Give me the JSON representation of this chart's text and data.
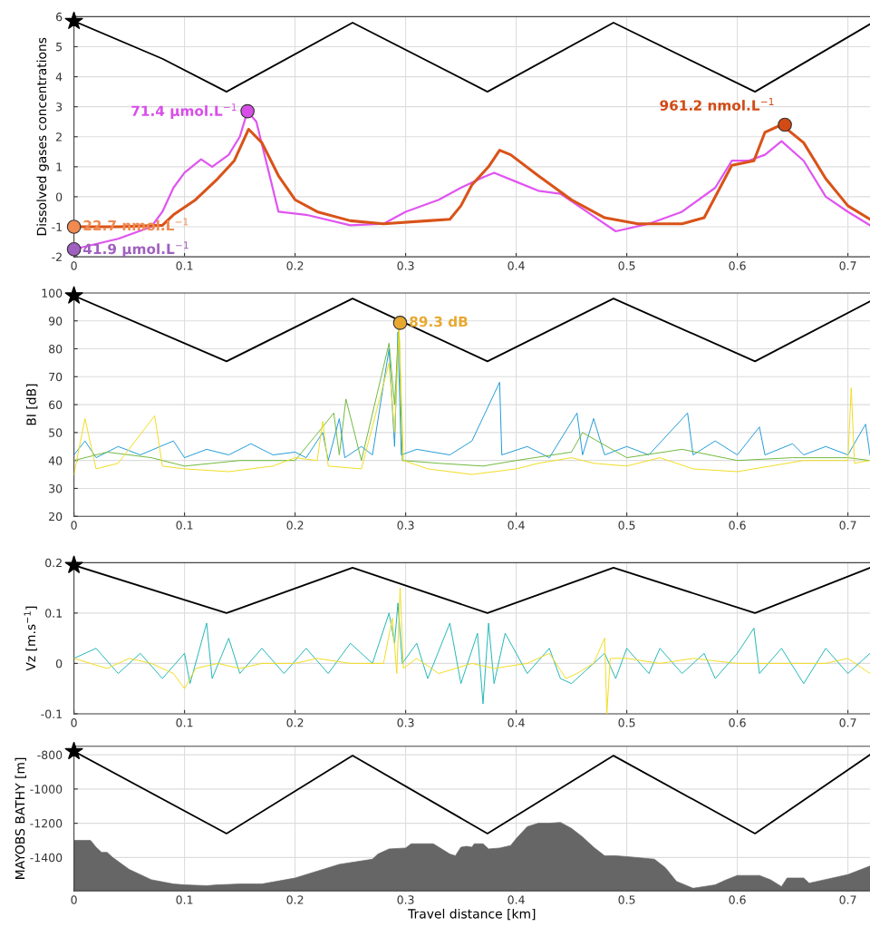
{
  "chart_data": [
    {
      "type": "line",
      "ylabel": "Dissolved gases concentrations",
      "xlim": [
        0,
        0.72
      ],
      "xticks": [
        0,
        0.1,
        0.2,
        0.3,
        0.4,
        0.5,
        0.6,
        0.7
      ],
      "ylim": [
        -2,
        6
      ],
      "yticks": [
        -2,
        -1,
        0,
        1,
        2,
        3,
        4,
        5,
        6
      ],
      "grid": true,
      "line_style": "solid",
      "marker": "none",
      "series": [
        {
          "color": "#000000",
          "x": [
            0,
            0.08,
            0.138,
            0.252,
            0.374,
            0.488,
            0.616,
            0.72
          ],
          "values": [
            5.85,
            4.6,
            3.5,
            5.8,
            3.5,
            5.8,
            3.5,
            5.75
          ]
        },
        {
          "type": "scatter",
          "marker": "star",
          "color": "#000000",
          "x": [
            0
          ],
          "values": [
            5.85
          ]
        },
        {
          "color": "#e055f0",
          "x": [
            0,
            0.04,
            0.07,
            0.08,
            0.09,
            0.1,
            0.115,
            0.125,
            0.14,
            0.15,
            0.157,
            0.165,
            0.175,
            0.185,
            0.21,
            0.25,
            0.28,
            0.3,
            0.33,
            0.35,
            0.37,
            0.38,
            0.4,
            0.42,
            0.44,
            0.46,
            0.49,
            0.52,
            0.55,
            0.58,
            0.595,
            0.61,
            0.625,
            0.64,
            0.66,
            0.68,
            0.7,
            0.72
          ],
          "values": [
            -1.75,
            -1.4,
            -1.0,
            -0.5,
            0.3,
            0.8,
            1.25,
            1.0,
            1.4,
            2.0,
            2.85,
            2.5,
            1.0,
            -0.5,
            -0.6,
            -0.95,
            -0.9,
            -0.5,
            -0.1,
            0.3,
            0.65,
            0.8,
            0.5,
            0.2,
            0.1,
            -0.4,
            -1.15,
            -0.9,
            -0.5,
            0.3,
            1.2,
            1.2,
            1.4,
            1.85,
            1.2,
            0.0,
            -0.5,
            -0.95
          ]
        },
        {
          "color": "#d95319",
          "x": [
            0,
            0.04,
            0.08,
            0.09,
            0.11,
            0.13,
            0.145,
            0.158,
            0.17,
            0.185,
            0.2,
            0.22,
            0.25,
            0.28,
            0.32,
            0.34,
            0.35,
            0.36,
            0.375,
            0.385,
            0.395,
            0.42,
            0.45,
            0.48,
            0.51,
            0.55,
            0.57,
            0.58,
            0.595,
            0.615,
            0.625,
            0.64,
            0.66,
            0.68,
            0.7,
            0.72
          ],
          "values": [
            -1.0,
            -1.0,
            -0.95,
            -0.6,
            -0.1,
            0.6,
            1.2,
            2.25,
            1.8,
            0.7,
            -0.1,
            -0.5,
            -0.8,
            -0.9,
            -0.8,
            -0.75,
            -0.3,
            0.4,
            1.0,
            1.55,
            1.4,
            0.7,
            -0.1,
            -0.7,
            -0.9,
            -0.9,
            -0.7,
            0.0,
            1.05,
            1.2,
            2.15,
            2.4,
            1.8,
            0.6,
            -0.3,
            -0.75
          ]
        },
        {
          "type": "scatter",
          "marker": "circle",
          "color": "#f08a50",
          "x": [
            0
          ],
          "values": [
            -1.0
          ],
          "value_labels": [
            "22.7 nmol.L$^{−1}$"
          ]
        },
        {
          "type": "scatter",
          "marker": "circle",
          "color": "#a060c0",
          "x": [
            0
          ],
          "values": [
            -1.75
          ],
          "value_labels": [
            "41.9 μmol.L$^{−1}$"
          ]
        },
        {
          "type": "scatter",
          "marker": "circle",
          "color": "#d84ee8",
          "x": [
            0.157
          ],
          "values": [
            2.85
          ],
          "value_labels": [
            "71.4 μmol.L$^{−1}$"
          ]
        },
        {
          "type": "scatter",
          "marker": "circle",
          "color": "#d24a14",
          "x": [
            0.643
          ],
          "values": [
            2.4
          ],
          "value_labels": [
            "961.2 nmol.L$^{−1}$"
          ]
        }
      ]
    },
    {
      "type": "line",
      "ylabel": "BI [dB]",
      "xlim": [
        0,
        0.72
      ],
      "xticks": [
        0,
        0.1,
        0.2,
        0.3,
        0.4,
        0.5,
        0.6,
        0.7
      ],
      "ylim": [
        20,
        100
      ],
      "yticks": [
        20,
        30,
        40,
        50,
        60,
        70,
        80,
        90,
        100
      ],
      "grid": true,
      "line_style": "solid",
      "marker": "none",
      "series": [
        {
          "color": "#1e9ad6",
          "x": [
            0,
            0.01,
            0.02,
            0.04,
            0.06,
            0.09,
            0.1,
            0.12,
            0.14,
            0.16,
            0.18,
            0.2,
            0.21,
            0.225,
            0.23,
            0.24,
            0.245,
            0.26,
            0.27,
            0.285,
            0.29,
            0.293,
            0.296,
            0.31,
            0.34,
            0.36,
            0.385,
            0.387,
            0.41,
            0.43,
            0.455,
            0.46,
            0.47,
            0.48,
            0.5,
            0.52,
            0.555,
            0.56,
            0.58,
            0.6,
            0.62,
            0.625,
            0.65,
            0.66,
            0.68,
            0.7,
            0.716,
            0.72
          ],
          "values": [
            42,
            47,
            41,
            45,
            42,
            47,
            41,
            44,
            42,
            46,
            42,
            43,
            41,
            50,
            40,
            55,
            41,
            45,
            42,
            80,
            45,
            86,
            42,
            44,
            42,
            47,
            68,
            42,
            45,
            41,
            57,
            42,
            55,
            42,
            45,
            42,
            57,
            42,
            47,
            42,
            52,
            42,
            46,
            42,
            45,
            42,
            53,
            42
          ]
        },
        {
          "color": "#6cb83a",
          "x": [
            0,
            0.03,
            0.07,
            0.1,
            0.15,
            0.2,
            0.225,
            0.235,
            0.24,
            0.246,
            0.26,
            0.285,
            0.29,
            0.294,
            0.297,
            0.33,
            0.37,
            0.4,
            0.45,
            0.46,
            0.5,
            0.55,
            0.6,
            0.65,
            0.7,
            0.72
          ],
          "values": [
            40,
            43,
            41,
            38,
            40,
            40,
            52,
            57,
            42,
            62,
            40,
            82,
            60,
            88,
            40,
            39,
            38,
            40,
            43,
            50,
            41,
            44,
            40,
            41,
            41,
            40
          ]
        },
        {
          "color": "#f0dc1e",
          "x": [
            0,
            0.01,
            0.02,
            0.04,
            0.073,
            0.08,
            0.1,
            0.14,
            0.18,
            0.2,
            0.22,
            0.225,
            0.23,
            0.26,
            0.285,
            0.29,
            0.294,
            0.298,
            0.32,
            0.36,
            0.4,
            0.42,
            0.45,
            0.47,
            0.5,
            0.53,
            0.56,
            0.6,
            0.63,
            0.66,
            0.7,
            0.703,
            0.706,
            0.72
          ],
          "values": [
            35,
            55,
            37,
            39,
            56,
            38,
            37,
            36,
            38,
            41,
            40,
            54,
            38,
            37,
            75,
            50,
            88,
            40,
            37,
            35,
            37,
            39,
            41,
            39,
            38,
            41,
            37,
            36,
            38,
            40,
            40,
            66,
            39,
            40
          ]
        },
        {
          "color": "#000000",
          "x": [
            0,
            0.138,
            0.252,
            0.374,
            0.488,
            0.616,
            0.72
          ],
          "values": [
            99,
            75.5,
            98,
            75.5,
            98,
            75.5,
            97
          ]
        },
        {
          "type": "scatter",
          "marker": "star",
          "color": "#000000",
          "x": [
            0
          ],
          "values": [
            99
          ]
        },
        {
          "type": "scatter",
          "marker": "circle",
          "color": "#e8a830",
          "x": [
            0.295
          ],
          "values": [
            89.3
          ],
          "value_labels": [
            "89.3 dB"
          ]
        }
      ]
    },
    {
      "type": "line",
      "ylabel": "Vz [m.s$^{−1}$]",
      "xlim": [
        0,
        0.72
      ],
      "xticks": [
        0,
        0.1,
        0.2,
        0.3,
        0.4,
        0.5,
        0.6,
        0.7
      ],
      "ylim": [
        -0.1,
        0.2
      ],
      "yticks": [
        -0.1,
        0,
        0.1,
        0.2
      ],
      "grid": true,
      "line_style": "solid",
      "marker": "none",
      "series": [
        {
          "color": "#1fb5b5",
          "x": [
            0,
            0.02,
            0.04,
            0.06,
            0.08,
            0.1,
            0.105,
            0.12,
            0.125,
            0.14,
            0.15,
            0.17,
            0.19,
            0.21,
            0.23,
            0.25,
            0.27,
            0.285,
            0.29,
            0.293,
            0.297,
            0.31,
            0.32,
            0.34,
            0.35,
            0.365,
            0.37,
            0.375,
            0.38,
            0.39,
            0.41,
            0.43,
            0.44,
            0.45,
            0.48,
            0.49,
            0.5,
            0.52,
            0.53,
            0.55,
            0.57,
            0.58,
            0.6,
            0.615,
            0.62,
            0.64,
            0.66,
            0.68,
            0.7,
            0.72
          ],
          "values": [
            0.01,
            0.03,
            -0.02,
            0.02,
            -0.03,
            0.02,
            -0.04,
            0.08,
            -0.03,
            0.05,
            -0.02,
            0.03,
            -0.02,
            0.03,
            -0.02,
            0.04,
            0.0,
            0.1,
            0.04,
            0.12,
            0.0,
            0.04,
            -0.03,
            0.08,
            -0.04,
            0.06,
            -0.08,
            0.08,
            -0.04,
            0.06,
            -0.02,
            0.03,
            -0.03,
            -0.04,
            0.02,
            -0.03,
            0.03,
            -0.02,
            0.03,
            -0.02,
            0.02,
            -0.03,
            0.02,
            0.07,
            -0.02,
            0.03,
            -0.04,
            0.03,
            -0.02,
            0.02
          ]
        },
        {
          "color": "#f0dc1e",
          "x": [
            0,
            0.03,
            0.05,
            0.07,
            0.09,
            0.1,
            0.11,
            0.13,
            0.15,
            0.17,
            0.2,
            0.22,
            0.25,
            0.28,
            0.288,
            0.292,
            0.295,
            0.298,
            0.31,
            0.33,
            0.36,
            0.38,
            0.41,
            0.43,
            0.445,
            0.455,
            0.47,
            0.48,
            0.482,
            0.485,
            0.5,
            0.53,
            0.56,
            0.6,
            0.65,
            0.68,
            0.7,
            0.72
          ],
          "values": [
            0.01,
            -0.01,
            0.01,
            0.0,
            -0.02,
            -0.05,
            -0.01,
            0.0,
            -0.01,
            0.0,
            0.0,
            0.01,
            0.0,
            0.0,
            0.09,
            -0.02,
            0.15,
            -0.01,
            0.01,
            -0.02,
            0.0,
            -0.01,
            0.0,
            0.02,
            -0.03,
            -0.02,
            0.0,
            0.05,
            -0.1,
            0.01,
            0.01,
            0.0,
            0.01,
            0.0,
            0.0,
            0.0,
            0.01,
            -0.02
          ]
        },
        {
          "color": "#000000",
          "x": [
            0,
            0.138,
            0.252,
            0.374,
            0.488,
            0.616,
            0.72
          ],
          "values": [
            0.195,
            0.1,
            0.19,
            0.1,
            0.19,
            0.1,
            0.19
          ]
        },
        {
          "type": "scatter",
          "marker": "star",
          "color": "#000000",
          "x": [
            0
          ],
          "values": [
            0.195
          ]
        }
      ]
    },
    {
      "type": "line",
      "ylabel": "MAYOBS BATHY [m]",
      "xlabel": "Travel distance [km]",
      "xlim": [
        0,
        0.72
      ],
      "xticks": [
        0,
        0.1,
        0.2,
        0.3,
        0.4,
        0.5,
        0.6,
        0.7
      ],
      "ylim": [
        -1595,
        -750
      ],
      "yticks": [
        -1400,
        -1200,
        -1000,
        -800
      ],
      "grid": true,
      "line_style": "solid",
      "marker": "none",
      "series": [
        {
          "type": "area",
          "color": "#666666",
          "x": [
            0,
            0.015,
            0.02,
            0.025,
            0.03,
            0.035,
            0.05,
            0.07,
            0.09,
            0.1,
            0.12,
            0.13,
            0.15,
            0.17,
            0.2,
            0.22,
            0.24,
            0.27,
            0.275,
            0.285,
            0.3,
            0.305,
            0.325,
            0.33,
            0.34,
            0.345,
            0.35,
            0.355,
            0.36,
            0.362,
            0.37,
            0.375,
            0.385,
            0.395,
            0.4,
            0.41,
            0.42,
            0.43,
            0.44,
            0.45,
            0.46,
            0.47,
            0.48,
            0.49,
            0.5,
            0.525,
            0.535,
            0.545,
            0.56,
            0.57,
            0.58,
            0.59,
            0.6,
            0.62,
            0.63,
            0.64,
            0.645,
            0.66,
            0.665,
            0.7,
            0.72
          ],
          "values": [
            -1300,
            -1300,
            -1340,
            -1370,
            -1370,
            -1400,
            -1470,
            -1530,
            -1555,
            -1560,
            -1565,
            -1560,
            -1555,
            -1555,
            -1520,
            -1480,
            -1440,
            -1410,
            -1380,
            -1350,
            -1345,
            -1320,
            -1320,
            -1340,
            -1380,
            -1390,
            -1340,
            -1335,
            -1340,
            -1320,
            -1320,
            -1350,
            -1345,
            -1330,
            -1290,
            -1220,
            -1200,
            -1200,
            -1195,
            -1230,
            -1280,
            -1340,
            -1390,
            -1390,
            -1395,
            -1410,
            -1460,
            -1540,
            -1580,
            -1570,
            -1560,
            -1530,
            -1505,
            -1505,
            -1530,
            -1570,
            -1520,
            -1520,
            -1550,
            -1500,
            -1450
          ]
        },
        {
          "color": "#000000",
          "x": [
            0,
            0.138,
            0.252,
            0.374,
            0.488,
            0.616,
            0.72
          ],
          "values": [
            -780,
            -1260,
            -805,
            -1260,
            -805,
            -1260,
            -800
          ]
        },
        {
          "type": "scatter",
          "marker": "star",
          "color": "#000000",
          "x": [
            0
          ],
          "values": [
            -780
          ]
        }
      ]
    }
  ]
}
